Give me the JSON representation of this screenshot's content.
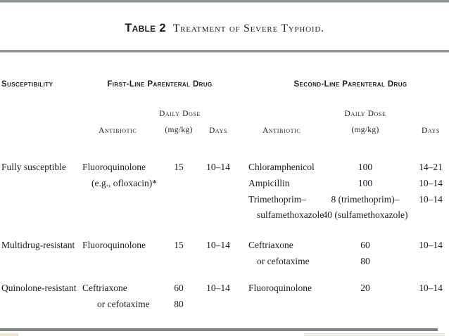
{
  "title": {
    "table_label": "Table 2",
    "table_title": "Treatment of Severe Typhoid."
  },
  "headers": {
    "susceptibility": "Susceptibility",
    "first_line_group": "First-Line Parenteral Drug",
    "second_line_group": "Second-Line Parenteral Drug",
    "antibiotic": "Antibiotic",
    "daily_dose": "Daily Dose",
    "dose_unit": "(mg/kg)",
    "days": "Days"
  },
  "rows": [
    {
      "susceptibility": "Fully susceptible",
      "first": {
        "antibiotic_line1": "Fluoroquinolone",
        "antibiotic_line2": "(e.g., ofloxacin)*",
        "dose_line1": "15",
        "days_line1": "10–14"
      },
      "second": {
        "antibiotic_line1": "Chloramphenicol",
        "antibiotic_line2": "Ampicillin",
        "antibiotic_line3": "Trimethoprim–",
        "antibiotic_line4": "sulfamethoxazole",
        "dose_line1": "100",
        "dose_line2": "100",
        "dose_line3": "8 (trimethoprim)–",
        "dose_line4": "40 (sulfamethoxazole)",
        "days_line1": "14–21",
        "days_line2": "10–14",
        "days_line3": "10–14"
      }
    },
    {
      "susceptibility": "Multidrug-resistant",
      "first": {
        "antibiotic_line1": "Fluoroquinolone",
        "dose_line1": "15",
        "days_line1": "10–14"
      },
      "second": {
        "antibiotic_line1": "Ceftriaxone",
        "antibiotic_line2": "or cefotaxime",
        "dose_line1": "60",
        "dose_line2": "80",
        "days_line1": "10–14"
      }
    },
    {
      "susceptibility": "Quinolone-resistant",
      "first": {
        "antibiotic_line1": "Ceftriaxone",
        "antibiotic_line2": "or cefotaxime",
        "dose_line1": "60",
        "dose_line2": "80",
        "days_line1": "10–14"
      },
      "second": {
        "antibiotic_line1": "Fluoroquinolone",
        "dose_line1": "20",
        "days_line1": "10–14"
      }
    }
  ]
}
